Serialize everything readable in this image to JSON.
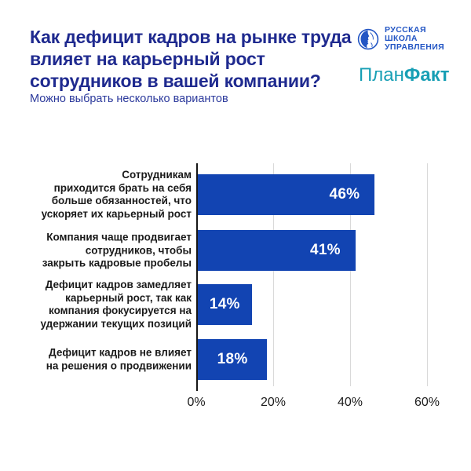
{
  "header": {
    "title": "Как дефицит кадров на рынке труда\nвлияет на карьерный рост\nсотрудников в вашей компании?",
    "subtitle": "Можно выбрать несколько вариантов",
    "logos": {
      "rsu": {
        "line1": "РУССКАЯ",
        "line2": "ШКОЛА",
        "line3": "УПРАВЛЕНИЯ"
      },
      "planfact": {
        "regular": "План",
        "bold": "Факт"
      }
    }
  },
  "colors": {
    "title_navy": "#1F2A8F",
    "subtitle_navy": "#2C3A9C",
    "bar_blue": "#1244B2",
    "rsu_blue": "#2356C4",
    "planfact_teal": "#189FB5",
    "grid_gray": "#D9D9D9",
    "axis_black": "#161616",
    "label_black": "#1A1A1A",
    "background": "#FFFFFF"
  },
  "chart_data": {
    "type": "bar",
    "orientation": "horizontal",
    "title": "Как дефицит кадров на рынке труда влияет на карьерный рост сотрудников в вашей компании?",
    "subtitle": "Можно выбрать несколько вариантов",
    "categories": [
      "Сотрудникам приходится брать на себя больше обязанностей, что ускоряет их карьерный рост",
      "Компания чаще продвигает сотрудников, чтобы закрыть кадровые пробелы",
      "Дефицит кадров замедляет карьерный рост, так как компания фокусируется на удержании текущих позиций",
      "Дефицит кадров не влияет на решения о продвижении"
    ],
    "categories_wrapped": [
      "Сотрудникам\nприходится брать на себя\nбольше обязанностей, что\nускоряет их карьерный рост",
      "Компания чаще продвигает\nсотрудников, чтобы\nзакрыть кадровые пробелы",
      "Дефицит кадров замедляет\nкарьерный рост, так как\nкомпания фокусируется на\nудержании текущих позиций",
      "Дефицит кадров не влияет\nна решения о продвижении"
    ],
    "values": [
      46,
      41,
      14,
      18
    ],
    "value_labels": [
      "46%",
      "41%",
      "14%",
      "18%"
    ],
    "value_label_positions": [
      "inside-right",
      "inside-right",
      "center",
      "center"
    ],
    "xtick_values": [
      0,
      20,
      40,
      60
    ],
    "xtick_labels": [
      "0%",
      "20%",
      "40%",
      "60%"
    ],
    "xlim": [
      0,
      62
    ],
    "bar_color": "#1244B2",
    "grid": true,
    "legend": false
  }
}
